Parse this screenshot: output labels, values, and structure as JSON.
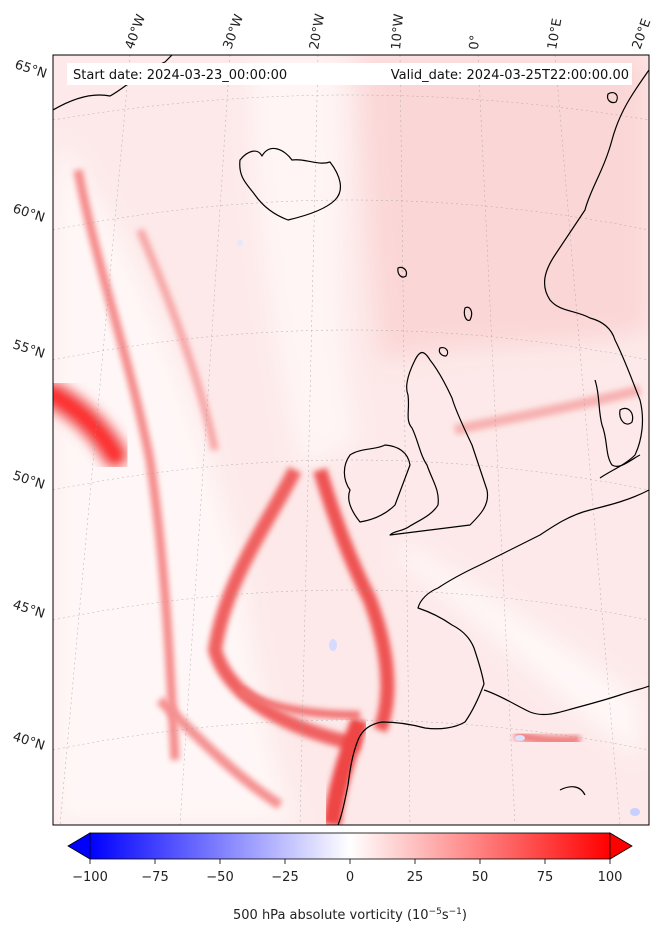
{
  "map": {
    "start_date": "Start date: 2024-03-23_00:00:00",
    "valid_date": "Valid_date: 2024-03-25T22:00:00.00",
    "lon_labels": [
      "40°W",
      "30°W",
      "20°W",
      "10°W",
      "0°",
      "10°E",
      "20°E"
    ],
    "lat_labels": [
      "65°N",
      "60°N",
      "55°N",
      "50°N",
      "45°N",
      "40°N"
    ],
    "colorbar": {
      "min": -100,
      "max": 100,
      "ticks": [
        "−100",
        "−75",
        "−50",
        "−25",
        "0",
        "25",
        "50",
        "75",
        "100"
      ],
      "label": "500 hPa absolute vorticity (10",
      "label_exp1": "−5",
      "label_mid": "s",
      "label_exp2": "−1",
      "label_end": ")",
      "cmap": "bwr",
      "extend": "both"
    },
    "colors": {
      "neg": "#0000ff",
      "zero": "#ffffff",
      "pos": "#ff0000",
      "coast": "#000000"
    }
  }
}
